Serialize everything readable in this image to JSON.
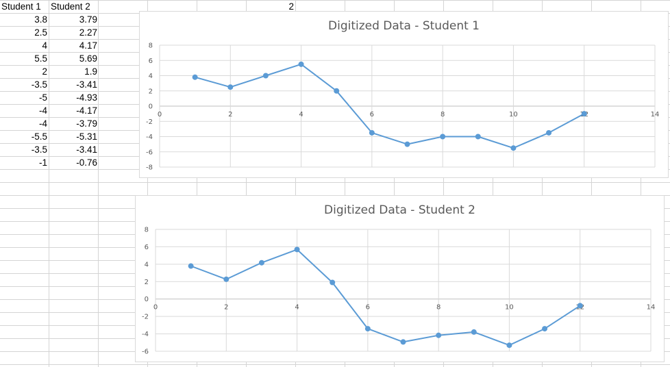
{
  "sheet": {
    "headers": [
      "Student 1",
      "Student 2"
    ],
    "top_value": "2",
    "rows": [
      [
        "3.8",
        "3.79"
      ],
      [
        "2.5",
        "2.27"
      ],
      [
        "4",
        "4.17"
      ],
      [
        "5.5",
        "5.69"
      ],
      [
        "2",
        "1.9"
      ],
      [
        "-3.5",
        "-3.41"
      ],
      [
        "-5",
        "-4.93"
      ],
      [
        "-4",
        "-4.17"
      ],
      [
        "-4",
        "-3.79"
      ],
      [
        "-5.5",
        "-5.31"
      ],
      [
        "-3.5",
        "-3.41"
      ],
      [
        "-1",
        "-0.76"
      ]
    ]
  },
  "chart_data": [
    {
      "type": "scatter",
      "title": "Digitized Data - Student 1",
      "x": [
        1,
        2,
        3,
        4,
        5,
        6,
        7,
        8,
        9,
        10,
        11,
        12
      ],
      "series": [
        {
          "values": [
            3.8,
            2.5,
            4,
            5.5,
            2,
            -3.5,
            -5,
            -4,
            -4,
            -5.5,
            -3.5,
            -1
          ]
        }
      ],
      "xlim": [
        0,
        14
      ],
      "ylim": [
        -8,
        8
      ],
      "xticks": [
        "0",
        "2",
        "4",
        "6",
        "8",
        "10",
        "12",
        "14"
      ],
      "yticks": [
        "8",
        "6",
        "4",
        "2",
        "0",
        "-2",
        "-4",
        "-6",
        "-8"
      ],
      "grid": true,
      "line_color": "#5b9bd5"
    },
    {
      "type": "scatter",
      "title": "Digitized Data - Student 2",
      "x": [
        1,
        2,
        3,
        4,
        5,
        6,
        7,
        8,
        9,
        10,
        11,
        12
      ],
      "series": [
        {
          "values": [
            3.79,
            2.27,
            4.17,
            5.69,
            1.9,
            -3.41,
            -4.93,
            -4.17,
            -3.79,
            -5.31,
            -3.41,
            -0.76
          ]
        }
      ],
      "xlim": [
        0,
        14
      ],
      "ylim": [
        -6,
        8
      ],
      "xticks": [
        "0",
        "2",
        "4",
        "6",
        "8",
        "10",
        "12",
        "14"
      ],
      "yticks": [
        "8",
        "6",
        "4",
        "2",
        "0",
        "-2",
        "-4",
        "-6"
      ],
      "grid": true,
      "line_color": "#5b9bd5"
    }
  ]
}
